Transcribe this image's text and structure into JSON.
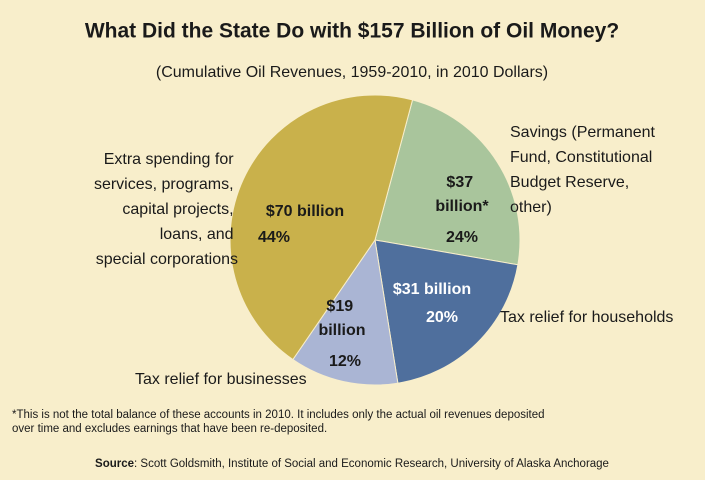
{
  "chart_data": {
    "type": "pie",
    "title": "What Did the State Do with $157 Billion of Oil Money?",
    "subtitle": "(Cumulative Oil Revenues, 1959-2010, in 2010 Dollars)",
    "categories": [
      "Savings (Permanent Fund, Constitutional Budget Reserve, other)",
      "Tax relief for households",
      "Tax relief for businesses",
      "Extra spending for services, programs, capital projects, loans, and special corporations"
    ],
    "values": [
      37,
      31,
      19,
      70
    ],
    "value_labels": [
      "$37 billion*",
      "$31 billion",
      "$19 billion",
      "$70 billion"
    ],
    "percentages": [
      24,
      20,
      12,
      44
    ],
    "percentage_labels": [
      "24%",
      "20%",
      "12%",
      "44%"
    ],
    "colors": [
      "#a9c59c",
      "#4f6f9d",
      "#aab5d4",
      "#c9b14b"
    ],
    "footnote": "*This is not the total balance of these accounts in 2010. It includes only the actual oil revenues deposited over time and excludes earnings that have been re-deposited.",
    "source_label": "Source",
    "source": ": Scott Goldsmith, Institute of Social and Economic Research, University of Alaska Anchorage"
  }
}
